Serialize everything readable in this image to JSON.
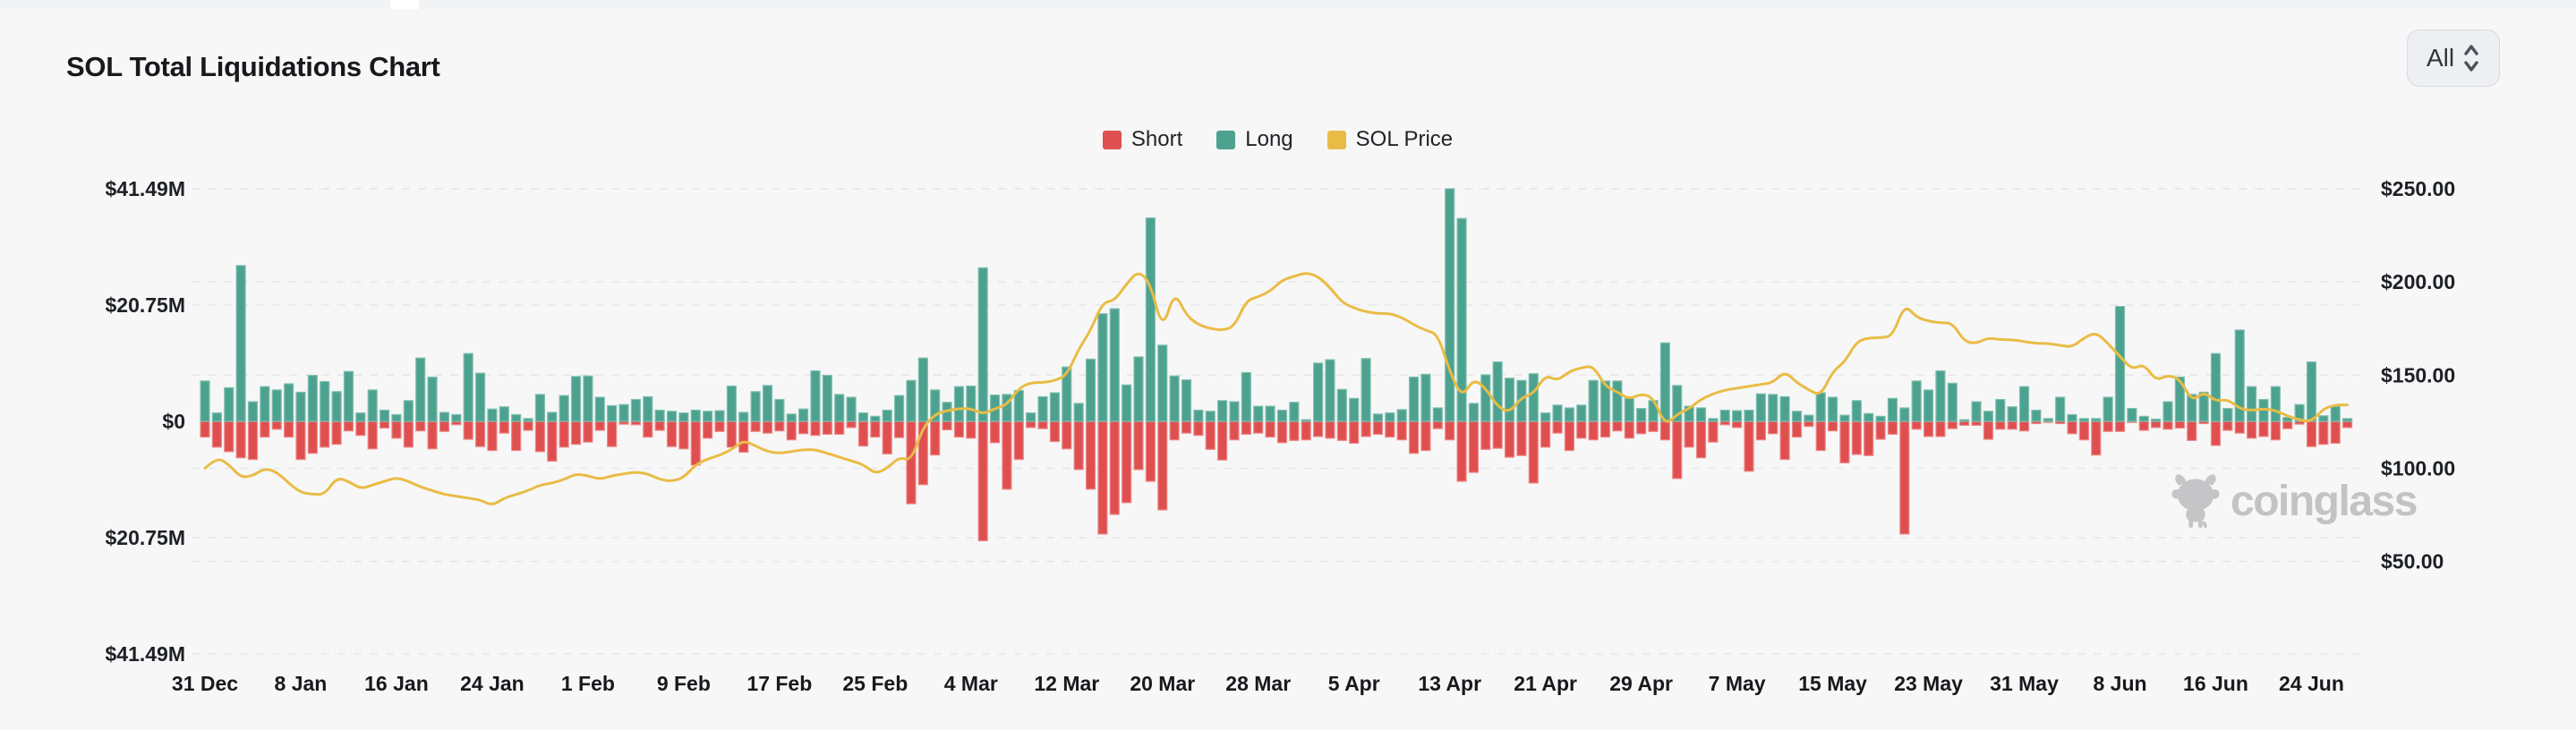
{
  "header": {
    "title": "SOL Total Liquidations Chart",
    "range_select": {
      "value": "All"
    }
  },
  "legend": {
    "items": [
      {
        "label": "Short",
        "color": "#E04F4F"
      },
      {
        "label": "Long",
        "color": "#4DA28F"
      },
      {
        "label": "SOL Price",
        "color": "#E9BC45"
      }
    ]
  },
  "watermark": {
    "text": "coinglass"
  },
  "chart_data": {
    "type": "bar+line",
    "title": "SOL Total Liquidations Chart",
    "grid": "dashed horizontal",
    "legend_position": "top-center",
    "left_axis": {
      "labels": [
        "$41.49M",
        "$20.75M",
        "$0",
        "$20.75M",
        "$41.49M"
      ],
      "values": [
        41.49,
        20.75,
        0,
        -20.75,
        -41.49
      ]
    },
    "right_axis": {
      "labels": [
        "$250.00",
        "$200.00",
        "$150.00",
        "$100.00",
        "$50.00"
      ],
      "values": [
        250,
        200,
        150,
        100,
        50
      ]
    },
    "ylim_left": [
      -41.49,
      41.49
    ],
    "ylim_right": [
      0,
      250
    ],
    "x_ticks": [
      "31 Dec",
      "8 Jan",
      "16 Jan",
      "24 Jan",
      "1 Feb",
      "9 Feb",
      "17 Feb",
      "25 Feb",
      "4 Mar",
      "12 Mar",
      "20 Mar",
      "28 Mar",
      "5 Apr",
      "13 Apr",
      "21 Apr",
      "29 Apr",
      "7 May",
      "15 May",
      "23 May",
      "31 May",
      "8 Jun",
      "16 Jun",
      "24 Jun"
    ],
    "tick_interval_days": 8,
    "units": {
      "bars": "USD millions",
      "line": "USD"
    },
    "series": [
      {
        "name": "Long",
        "type": "bar",
        "direction": "up",
        "color": "#4DA28F",
        "values": [
          7.2,
          1.5,
          6.0,
          27.8,
          3.5,
          6.2,
          5.6,
          6.7,
          5.2,
          8.2,
          7.1,
          5.3,
          8.9,
          1.5,
          5.6,
          2.0,
          1.2,
          3.7,
          11.3,
          7.9,
          1.6,
          1.2,
          12.1,
          8.6,
          2.2,
          2.6,
          1.2,
          0.5,
          4.8,
          1.6,
          4.6,
          8.0,
          8.1,
          4.3,
          2.8,
          3.0,
          3.9,
          4.4,
          2.0,
          1.8,
          1.5,
          2.0,
          1.8,
          1.9,
          6.3,
          1.6,
          5.3,
          6.4,
          3.9,
          1.3,
          2.2,
          9.0,
          8.2,
          4.8,
          4.3,
          1.5,
          0.9,
          2.0,
          4.6,
          7.3,
          11.3,
          5.6,
          3.4,
          6.2,
          6.3,
          27.4,
          4.7,
          4.8,
          5.5,
          1.5,
          4.4,
          5.1,
          9.7,
          3.2,
          11.1,
          19.2,
          20.1,
          6.5,
          11.5,
          36.3,
          13.6,
          8.1,
          7.4,
          2.0,
          1.8,
          3.7,
          3.5,
          8.7,
          2.7,
          2.7,
          2.0,
          3.4,
          0.3,
          10.4,
          11.0,
          5.7,
          4.1,
          11.2,
          1.3,
          1.5,
          2.1,
          7.9,
          8.4,
          2.4,
          41.5,
          36.2,
          3.2,
          8.3,
          10.6,
          7.7,
          7.3,
          8.5,
          1.5,
          2.9,
          2.4,
          2.9,
          7.3,
          7.2,
          7.2,
          4.1,
          2.3,
          3.7,
          14.0,
          6.4,
          2.7,
          2.4,
          0.5,
          2.0,
          1.9,
          2.0,
          4.9,
          4.8,
          4.4,
          1.8,
          1.1,
          5.1,
          4.3,
          1.1,
          3.7,
          1.4,
          0.9,
          4.1,
          2.4,
          7.2,
          5.6,
          9.0,
          6.8,
          0.3,
          3.5,
          1.8,
          3.9,
          2.6,
          6.2,
          2.0,
          0.5,
          4.3,
          1.2,
          0.5,
          0.5,
          4.3,
          20.5,
          2.3,
          0.9,
          0.4,
          3.5,
          7.9,
          4.8,
          5.2,
          12.1,
          2.3,
          16.3,
          6.2,
          3.9,
          6.2,
          0.7,
          3.0,
          10.6,
          1.0,
          2.7,
          0.5
        ]
      },
      {
        "name": "Short",
        "type": "bar",
        "direction": "down",
        "color": "#E04F4F",
        "values": [
          2.8,
          4.6,
          5.4,
          6.5,
          6.8,
          2.8,
          1.4,
          2.8,
          6.8,
          5.7,
          4.6,
          4.1,
          1.7,
          2.5,
          4.9,
          1.2,
          3.0,
          4.6,
          1.7,
          4.9,
          1.8,
          0.6,
          3.2,
          4.5,
          5.2,
          2.1,
          5.2,
          1.6,
          5.4,
          7.1,
          4.6,
          4.1,
          3.7,
          1.6,
          4.5,
          0.5,
          0.6,
          2.8,
          1.6,
          4.5,
          4.9,
          7.8,
          3.0,
          1.8,
          4.6,
          5.5,
          1.8,
          2.1,
          1.7,
          3.3,
          2.2,
          2.5,
          2.3,
          2.3,
          1.1,
          4.4,
          2.8,
          5.8,
          2.9,
          14.7,
          11.3,
          6.0,
          1.5,
          2.8,
          3.0,
          21.3,
          3.8,
          12.1,
          6.8,
          1.1,
          1.3,
          3.6,
          4.9,
          8.6,
          12.1,
          20.1,
          16.6,
          14.5,
          8.6,
          10.7,
          15.8,
          3.3,
          2.1,
          2.5,
          5.0,
          6.9,
          3.3,
          2.3,
          2.1,
          2.8,
          3.8,
          3.4,
          3.3,
          2.7,
          3.0,
          3.4,
          3.9,
          2.7,
          2.3,
          2.8,
          3.3,
          5.7,
          5.2,
          1.3,
          3.3,
          10.7,
          9.1,
          5.0,
          4.8,
          6.4,
          6.1,
          11.0,
          4.6,
          2.1,
          5.2,
          3.0,
          3.3,
          2.8,
          1.7,
          3.0,
          2.2,
          1.8,
          3.3,
          10.2,
          4.6,
          6.5,
          3.7,
          0.6,
          1.1,
          8.9,
          3.3,
          2.2,
          6.8,
          2.8,
          0.9,
          5.2,
          1.7,
          7.4,
          5.9,
          6.1,
          3.2,
          2.3,
          20.1,
          1.4,
          2.7,
          2.7,
          1.3,
          0.7,
          0.7,
          3.2,
          1.4,
          1.4,
          1.7,
          0.4,
          0.2,
          0.4,
          2.2,
          3.3,
          6.0,
          1.8,
          1.8,
          0.2,
          1.6,
          1.1,
          1.4,
          1.2,
          3.4,
          0.4,
          4.3,
          1.6,
          2.1,
          3.0,
          2.7,
          3.3,
          1.3,
          0.5,
          4.5,
          4.1,
          3.9,
          1.1
        ]
      },
      {
        "name": "SOL Price",
        "type": "line",
        "axis": "right",
        "color": "#E9BC45",
        "values": [
          100,
          106,
          102,
          95,
          96,
          100,
          98,
          92,
          87,
          86,
          86,
          95,
          93,
          89,
          91,
          93,
          95,
          93,
          90,
          88,
          86,
          85,
          84,
          83,
          80,
          84,
          86,
          88,
          91,
          92,
          94,
          97,
          96,
          94,
          96,
          97,
          98,
          97,
          94,
          93,
          95,
          102,
          105,
          107,
          110,
          115,
          112,
          109,
          108,
          109,
          110,
          110,
          108,
          106,
          104,
          102,
          97,
          100,
          106,
          104,
          122,
          129,
          131,
          132,
          132,
          129,
          132,
          134,
          143,
          146,
          146,
          147,
          150,
          164,
          174,
          189,
          190,
          199,
          206,
          199,
          174,
          195,
          182,
          177,
          175,
          174,
          176,
          190,
          192,
          195,
          201,
          203,
          205,
          203,
          197,
          189,
          186,
          184,
          183,
          183,
          181,
          177,
          174,
          172,
          152,
          138,
          148,
          143,
          133,
          130,
          138,
          140,
          150,
          147,
          152,
          154,
          155,
          144,
          141,
          137,
          140,
          138,
          123,
          129,
          132,
          137,
          140,
          142,
          143,
          144,
          145,
          146,
          152,
          146,
          142,
          139,
          152,
          157,
          168,
          170,
          170,
          171,
          188,
          181,
          179,
          178,
          178,
          168,
          167,
          170,
          169,
          169,
          168,
          167,
          167,
          166,
          165,
          170,
          173,
          167,
          160,
          153,
          156,
          147,
          150,
          148,
          136,
          141,
          136,
          137,
          132,
          131,
          132,
          131,
          128,
          126,
          125,
          132,
          134,
          134
        ]
      }
    ]
  }
}
